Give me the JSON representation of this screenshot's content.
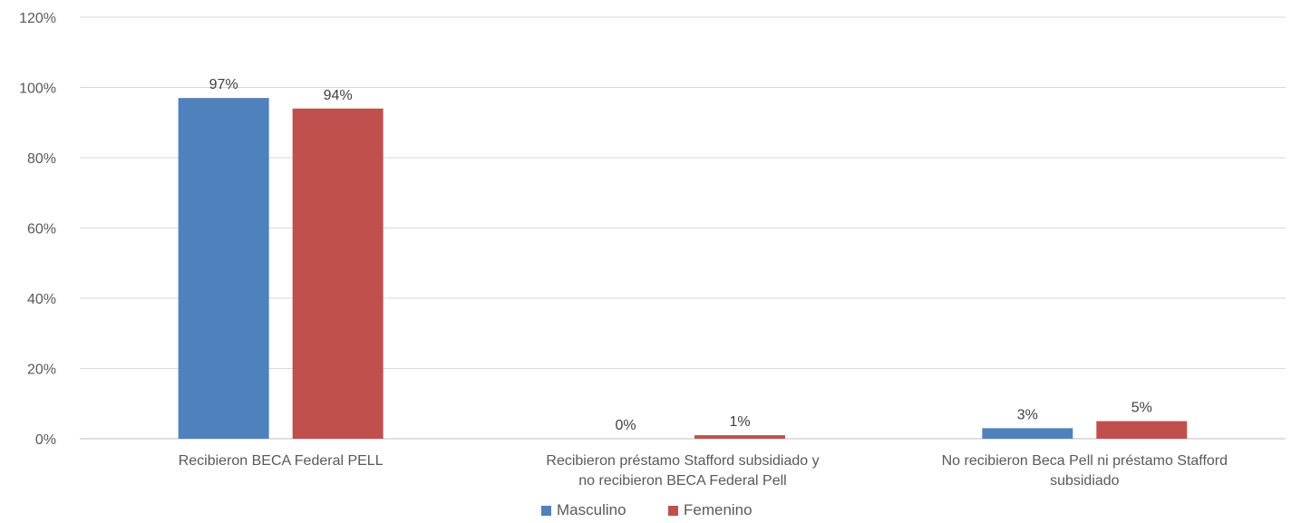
{
  "chart_data": {
    "type": "bar",
    "title": "",
    "xlabel": "",
    "ylabel": "",
    "ylim": [
      0,
      120
    ],
    "yticks": [
      "0%",
      "20%",
      "40%",
      "60%",
      "80%",
      "100%",
      "120%"
    ],
    "ytick_values": [
      0,
      20,
      40,
      60,
      80,
      100,
      120
    ],
    "grid": true,
    "legend_position": "bottom",
    "categories": [
      [
        "Recibieron BECA Federal PELL"
      ],
      [
        "Recibieron préstamo Stafford subsidiado y",
        "no recibieron BECA Federal Pell"
      ],
      [
        "No recibieron Beca Pell ni préstamo  Stafford",
        "subsidiado"
      ]
    ],
    "series": [
      {
        "name": "Masculino",
        "color": "#4f81bd",
        "values": [
          97,
          0,
          3
        ],
        "labels": [
          "97%",
          "0%",
          "3%"
        ]
      },
      {
        "name": "Femenino",
        "color": "#c0504d",
        "values": [
          94,
          1,
          5
        ],
        "labels": [
          "94%",
          "1%",
          "5%"
        ]
      }
    ]
  }
}
